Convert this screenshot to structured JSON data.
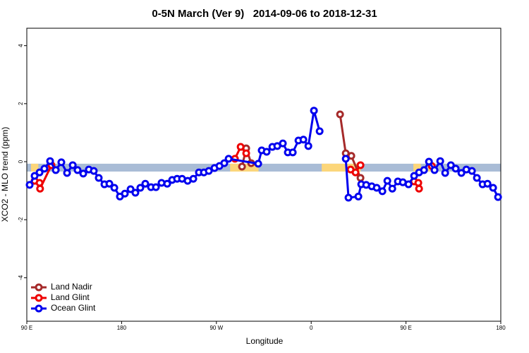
{
  "chart_data": {
    "type": "line",
    "title": "0-5N March (Ver 9)   2014-09-06 to 2018-12-31",
    "x_label": "Longitude",
    "y_label": "XCO2 - MLO trend (ppm)",
    "xlim": [
      90,
      540
    ],
    "ylim": [
      -5.5,
      4.6
    ],
    "xticks": [
      {
        "value": 90,
        "label": "90 E"
      },
      180,
      {
        "value": 270,
        "label": "90 W"
      },
      {
        "value": 360,
        "label": "0"
      },
      {
        "value": 450,
        "label": "90 E"
      },
      {
        "value": 540,
        "label": "180"
      }
    ],
    "yticks": [
      -4,
      -2,
      0,
      2,
      4
    ],
    "legend": "bottom-left",
    "surface_band": {
      "ylim": [
        -0.34,
        -0.07
      ],
      "color": "#a9bcd6",
      "land_color": "#fcd67a",
      "land_segments": [
        [
          94,
          101
        ],
        [
          283,
          310
        ],
        [
          370,
          407
        ],
        [
          457,
          464
        ],
        [
          471,
          478
        ]
      ]
    },
    "series": [
      {
        "name": "Land Nadir",
        "color": "#a52a2a",
        "x": [
          294.3,
          298.3,
          303.0,
          null,
          387.4,
          392.8,
          398.1,
          406.8
        ],
        "values": [
          -0.17,
          0.46,
          -0.05,
          null,
          1.63,
          0.29,
          0.2,
          -0.56
        ]
      },
      {
        "name": "Land Glint",
        "color": "#ee0000",
        "x": [
          97.4,
          102.1,
          102.6,
          113.4,
          null,
          287.6,
          293.0,
          298.3,
          null,
          397.4,
          402.1,
          406.8,
          null,
          457.7,
          461.7,
          462.4,
          null,
          474.5
        ],
        "values": [
          -0.66,
          -0.73,
          -0.93,
          -0.12,
          null,
          0.1,
          0.51,
          0.29,
          null,
          -0.27,
          -0.37,
          -0.12,
          null,
          -0.68,
          -0.73,
          -0.93,
          null,
          -0.15
        ]
      },
      {
        "name": "Ocean Glint",
        "color": "#0000ee",
        "x": [
          92.7,
          97.4,
          102.1,
          106.7,
          112.1,
          117.5,
          122.8,
          128.2,
          133.6,
          138.2,
          143.6,
          148.9,
          153.6,
          158.3,
          163.7,
          168.4,
          173.1,
          178.4,
          183.1,
          188.5,
          193.1,
          197.8,
          202.5,
          207.9,
          212.6,
          217.9,
          223.3,
          228.0,
          232.7,
          237.4,
          242.7,
          248.1,
          253.4,
          258.1,
          262.8,
          268.2,
          272.9,
          277.5,
          281.6,
          309.7,
          313.0,
          317.7,
          323.1,
          327.8,
          333.1,
          337.8,
          342.5,
          347.9,
          352.6,
          357.3,
          362.6,
          368.0,
          null,
          392.8,
          395.4,
          404.8,
          407.5,
          412.2,
          417.5,
          422.2,
          427.6,
          432.3,
          437.0,
          442.3,
          447.0,
          452.4,
          457.7,
          462.4,
          467.1,
          471.8,
          477.1,
          482.5,
          487.2,
          492.6,
          497.2,
          502.6,
          507.3,
          512.6,
          517.3,
          522.7,
          527.4,
          532.7,
          537.4
        ],
        "values": [
          -0.8,
          -0.49,
          -0.37,
          -0.24,
          0.02,
          -0.29,
          -0.02,
          -0.39,
          -0.12,
          -0.29,
          -0.41,
          -0.27,
          -0.32,
          -0.56,
          -0.78,
          -0.76,
          -0.9,
          -1.2,
          -1.1,
          -0.95,
          -1.07,
          -0.9,
          -0.76,
          -0.88,
          -0.88,
          -0.73,
          -0.76,
          -0.63,
          -0.59,
          -0.59,
          -0.66,
          -0.59,
          -0.37,
          -0.37,
          -0.32,
          -0.22,
          -0.15,
          -0.05,
          0.1,
          -0.07,
          0.39,
          0.34,
          0.51,
          0.54,
          0.63,
          0.32,
          0.32,
          0.73,
          0.76,
          0.54,
          1.76,
          1.05,
          null,
          0.1,
          -1.24,
          -1.2,
          -0.78,
          -0.8,
          -0.85,
          -0.9,
          -1.02,
          -0.66,
          -0.93,
          -0.68,
          -0.71,
          -0.78,
          -0.49,
          -0.37,
          -0.29,
          0.0,
          -0.29,
          0.02,
          -0.39,
          -0.12,
          -0.24,
          -0.39,
          -0.27,
          -0.32,
          -0.56,
          -0.78,
          -0.76,
          -0.9,
          -1.22
        ]
      }
    ]
  }
}
